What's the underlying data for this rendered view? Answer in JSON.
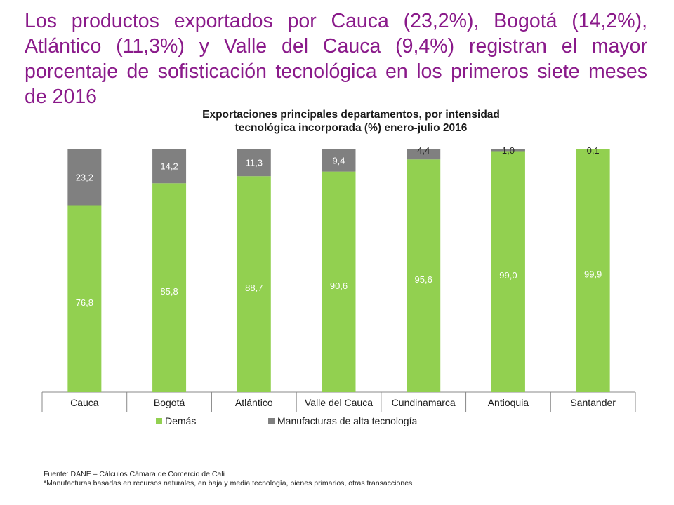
{
  "headline": "Los productos exportados por Cauca (23,2%), Bogotá (14,2%), Atlántico (11,3%) y Valle del Cauca (9,4%) registran el mayor porcentaje de sofisticación tecnológica en los primeros siete meses de 2016",
  "colors": {
    "headline": "#8a1a8a",
    "demas": "#92d050",
    "alta": "#808080"
  },
  "chart_data": {
    "type": "bar",
    "stacked": true,
    "title_lines": [
      "Exportaciones principales departamentos, por intensidad",
      "tecnológica incorporada (%) enero-julio  2016"
    ],
    "categories": [
      "Cauca",
      "Bogotá",
      "Atlántico",
      "Valle del Cauca",
      "Cundinamarca",
      "Antioquia",
      "Santander"
    ],
    "series": [
      {
        "name": "Demás",
        "color": "#92d050",
        "values": [
          76.8,
          85.8,
          88.7,
          90.6,
          95.6,
          99.0,
          99.9
        ],
        "labels": [
          "76,8",
          "85,8",
          "88,7",
          "90,6",
          "95,6",
          "99,0",
          "99,9"
        ]
      },
      {
        "name": "Manufacturas de alta tecnología",
        "color": "#808080",
        "values": [
          23.2,
          14.2,
          11.3,
          9.4,
          4.4,
          1.0,
          0.1
        ],
        "labels": [
          "23,2",
          "14,2",
          "11,3",
          "9,4",
          "4,4",
          "1,0",
          "0,1"
        ]
      }
    ],
    "ylim": [
      0,
      100
    ],
    "grid": false,
    "legend_position": "bottom-left"
  },
  "footer": {
    "source": "Fuente: DANE – Cálculos Cámara de Comercio de Cali",
    "note": "*Manufacturas basadas en recursos naturales,  en baja y  media tecnología, bienes primarios, otras transacciones"
  }
}
